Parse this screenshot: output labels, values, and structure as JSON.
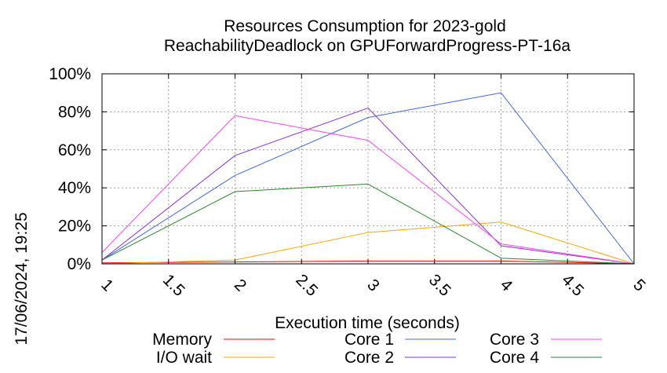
{
  "chart_data": {
    "type": "line",
    "title": "Resources Consumption for 2023-gold",
    "subtitle": "ReachabilityDeadlock on GPUForwardProgress-PT-16a",
    "xlabel": "Execution time (seconds)",
    "ylabel": "",
    "xlim": [
      1,
      5
    ],
    "ylim": [
      0,
      100
    ],
    "x_tick_labels": [
      "1",
      "1.5",
      "2",
      "2.5",
      "3",
      "3.5",
      "4",
      "4.5",
      "5"
    ],
    "y_tick_labels": [
      "0%",
      "20%",
      "40%",
      "60%",
      "80%",
      "100%"
    ],
    "grid": true,
    "legend_position": "bottom",
    "x": [
      1,
      2,
      3,
      4,
      5
    ],
    "series": [
      {
        "name": "Memory",
        "color": "#ff0000",
        "values": [
          0.5,
          1,
          1.5,
          1.5,
          0
        ]
      },
      {
        "name": "I/O wait",
        "color": "#ffa500",
        "values": [
          0,
          2,
          16.5,
          22,
          0
        ]
      },
      {
        "name": "Core 1",
        "color": "#4169e1",
        "values": [
          2,
          46.5,
          77,
          90,
          0
        ]
      },
      {
        "name": "Core 2",
        "color": "#8a2be2",
        "values": [
          2,
          57,
          82,
          9.5,
          0
        ]
      },
      {
        "name": "Core 3",
        "color": "#ff40ff",
        "values": [
          6,
          78,
          65,
          10.5,
          0
        ]
      },
      {
        "name": "Core 4",
        "color": "#228b22",
        "values": [
          2,
          38,
          42,
          3,
          0
        ]
      }
    ]
  },
  "timestamp": "17/06/2024, 19:25"
}
